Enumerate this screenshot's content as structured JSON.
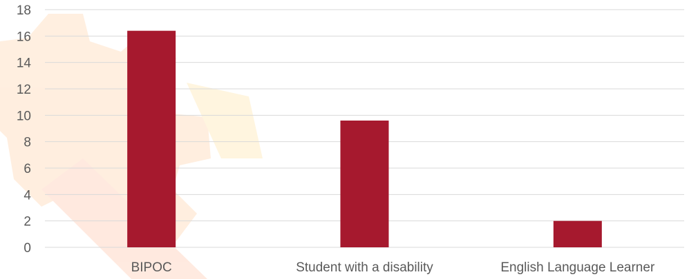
{
  "chart_data": {
    "type": "bar",
    "categories": [
      "BIPOC",
      "Student with a disability",
      "English Language Learner"
    ],
    "values": [
      16.4,
      9.6,
      2.0
    ],
    "title": "",
    "xlabel": "",
    "ylabel": "",
    "ylim": [
      0,
      18
    ],
    "yticks": [
      "0",
      "2",
      "4",
      "6",
      "8",
      "10",
      "12",
      "14",
      "16",
      "18"
    ],
    "grid": true,
    "legend": "none",
    "colors": {
      "bar": "#a6192e",
      "grid": "#d9d9d9",
      "axis_text": "#595959",
      "watermark": "#ff6a00"
    }
  }
}
